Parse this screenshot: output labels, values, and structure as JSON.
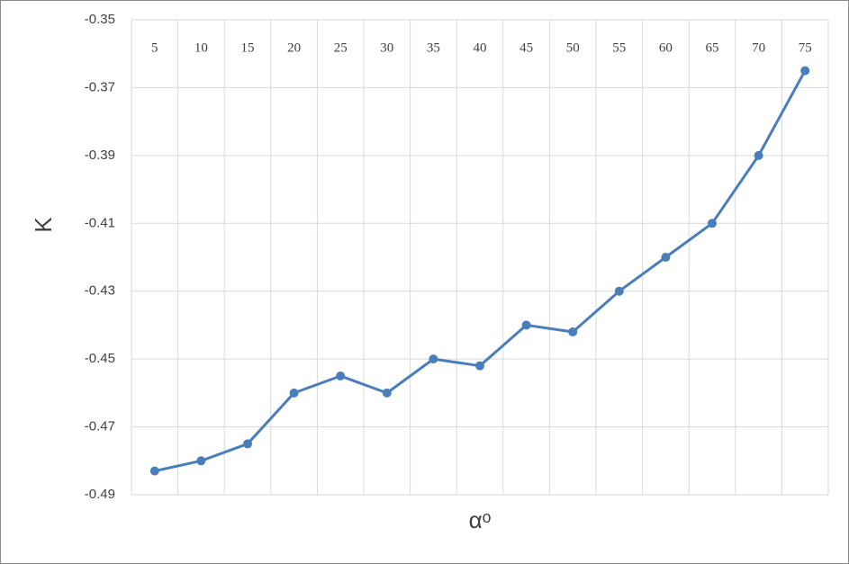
{
  "chart_data": {
    "type": "line",
    "y_label": "K",
    "x_label": "αᵒ",
    "categories": [
      "5",
      "10",
      "15",
      "20",
      "25",
      "30",
      "35",
      "40",
      "45",
      "50",
      "55",
      "60",
      "65",
      "70",
      "75"
    ],
    "series": [
      {
        "name": "K",
        "color": "#4a7ebb",
        "values": [
          -0.483,
          -0.48,
          -0.475,
          -0.46,
          -0.455,
          -0.46,
          -0.45,
          -0.452,
          -0.44,
          -0.442,
          -0.43,
          -0.42,
          -0.41,
          -0.39,
          -0.365
        ]
      }
    ],
    "ylim": [
      -0.49,
      -0.35
    ],
    "yticks": [
      -0.49,
      -0.47,
      -0.45,
      -0.43,
      -0.41,
      -0.39,
      -0.37,
      -0.35
    ],
    "grid": true
  }
}
